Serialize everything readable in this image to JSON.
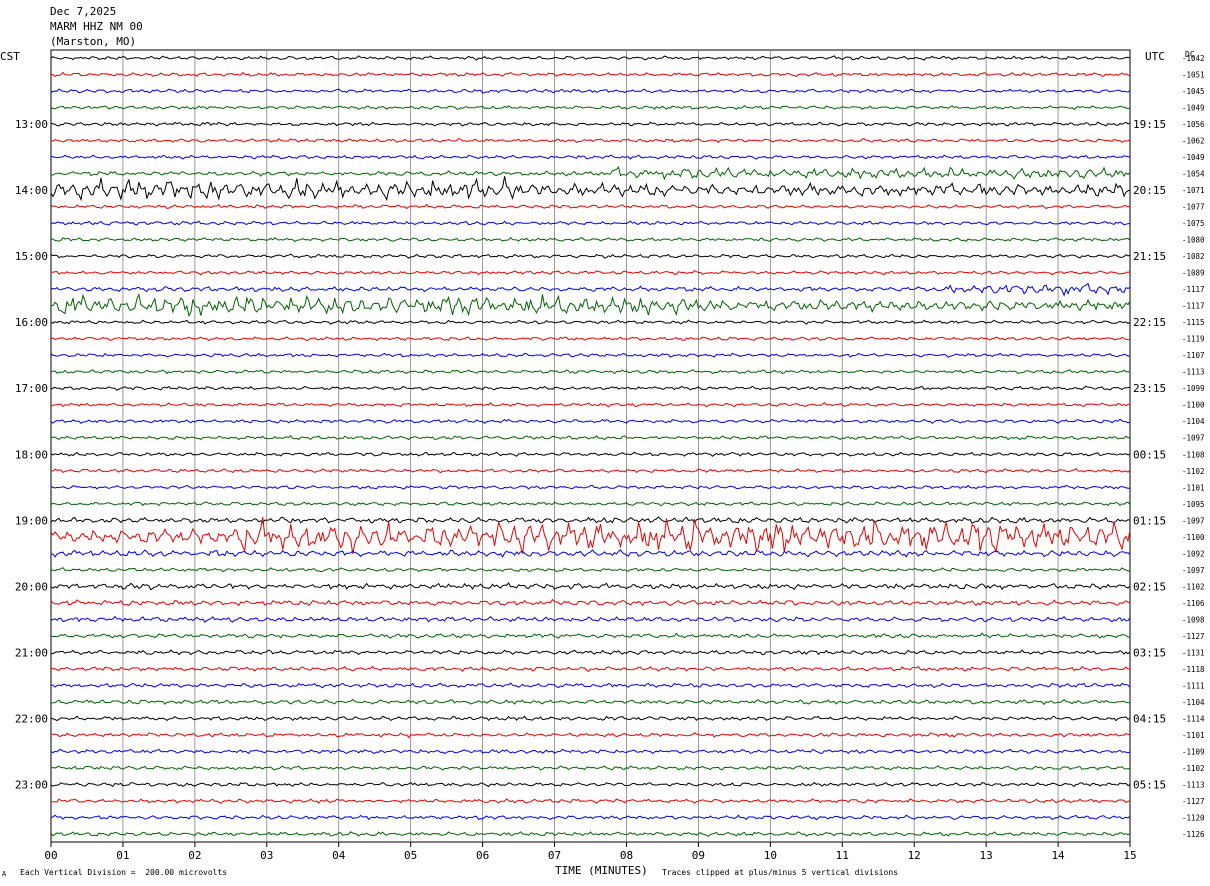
{
  "header": {
    "date": "Dec 7,2025",
    "station": "MARM HHZ NM 00",
    "location": "(Marston, MO)"
  },
  "axes": {
    "left_label": "CST",
    "right_label": "UTC",
    "dc_label": "DC",
    "xlabel": "TIME (MINUTES)"
  },
  "footer": {
    "left": "Each Vertical Division =  200.00 microvolts",
    "right": "Traces clipped at plus/minus 5 vertical divisions",
    "mark": "A"
  },
  "colors": {
    "trace_cycle": [
      "#000000",
      "#e60000",
      "#0000e6",
      "#006400"
    ],
    "grid": "#808080",
    "background": "#ffffff"
  },
  "chart_data": {
    "type": "line",
    "chart_kind": "helicorder",
    "xlim": [
      0,
      15
    ],
    "x_ticks": [
      "00",
      "01",
      "02",
      "03",
      "04",
      "05",
      "06",
      "07",
      "08",
      "09",
      "10",
      "11",
      "12",
      "13",
      "14",
      "15"
    ],
    "rows_per_hour": 4,
    "left_hour_labels": [
      "13:00",
      "14:00",
      "15:00",
      "16:00",
      "17:00",
      "18:00",
      "19:00",
      "20:00",
      "21:00",
      "22:00",
      "23:00"
    ],
    "right_hour_labels": [
      "19:15",
      "20:15",
      "21:15",
      "22:15",
      "23:15",
      "00:15",
      "01:15",
      "02:15",
      "03:15",
      "04:15",
      "05:15"
    ],
    "hour_label_first_row": 4,
    "dc_offsets": [
      "-1042",
      "-1051",
      "-1045",
      "-1049",
      "-1056",
      "-1062",
      "-1049",
      "-1054",
      "-1071",
      "-1077",
      "-1075",
      "-1080",
      "-1082",
      "-1089",
      "-1117",
      "-1117",
      "-1115",
      "-1119",
      "-1107",
      "-1113",
      "-1099",
      "-1100",
      "-1104",
      "-1097",
      "-1108",
      "-1102",
      "-1101",
      "-1095",
      "-1097",
      "-1100",
      "-1092",
      "-1097",
      "-1102",
      "-1106",
      "-1098",
      "-1127",
      "-1131",
      "-1118",
      "-1111",
      "-1104",
      "-1114",
      "-1101",
      "-1109",
      "-1102",
      "-1113",
      "-1127",
      "-1120",
      "-1126"
    ],
    "row_activity": [
      1,
      1,
      1,
      1,
      1,
      1,
      1,
      1.2,
      3.5,
      1,
      1,
      1,
      1,
      1,
      1.3,
      3,
      1,
      1,
      1,
      1,
      1,
      1,
      1,
      1,
      1,
      1,
      1,
      1,
      1.6,
      4,
      1.8,
      1,
      1.6,
      1.5,
      1.4,
      1.2,
      1.2,
      1.2,
      1.2,
      1.2,
      1.1,
      1.1,
      1.1,
      1.1,
      1.1,
      1.1,
      1.1,
      1.1
    ],
    "events": [
      {
        "row": 7,
        "from": 7.8,
        "to": 15,
        "level": 3
      },
      {
        "row": 8,
        "from": 0,
        "to": 6.5,
        "level": 5
      },
      {
        "row": 14,
        "from": 12.5,
        "to": 15,
        "level": 3
      },
      {
        "row": 15,
        "from": 0,
        "to": 9,
        "level": 5
      },
      {
        "row": 29,
        "from": 2.5,
        "to": 15,
        "level": 8
      }
    ]
  }
}
